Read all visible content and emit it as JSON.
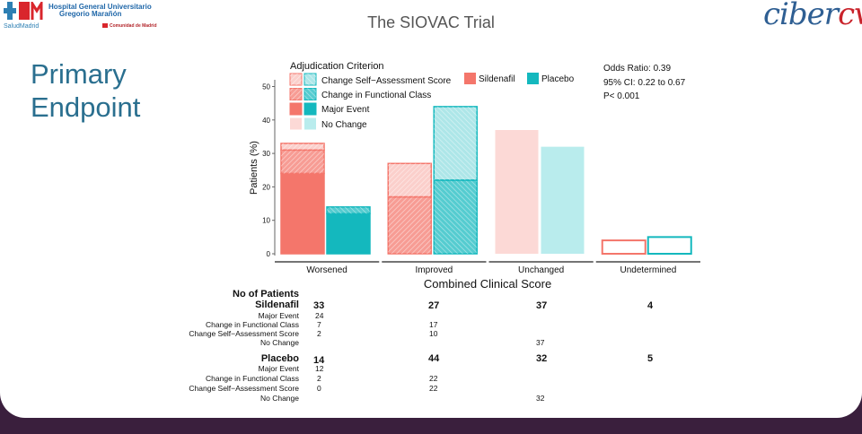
{
  "header": {
    "hospital_line1": "Hospital General Universitario",
    "hospital_line2": "Gregorio Marañón",
    "hospital_line3": "Comunidad de Madrid",
    "salud_label": "SaludMadrid",
    "title": "The SIOVAC Trial",
    "right_logo_part1": "ciber",
    "right_logo_part2": "cv"
  },
  "heading": {
    "line1": "Primary",
    "line2": "Endpoint"
  },
  "colors": {
    "sildenafil": "#f4766b",
    "placebo": "#14b8be",
    "sildenafil_light": "#fcd9d6",
    "placebo_light": "#b9eced"
  },
  "chart_data": {
    "type": "bar",
    "subtype": "stacked-grouped",
    "xlabel": "Combined Clinical Score",
    "ylabel": "Patients (%)",
    "ylim": [
      0,
      52
    ],
    "yticks": [
      0,
      10,
      20,
      30,
      40,
      50
    ],
    "categories": [
      "Worsened",
      "Improved",
      "Unchanged",
      "Undetermined"
    ],
    "legend_title": "Adjudication Criterion",
    "legend_criteria": [
      "Change Self−Assessment Score",
      "Change in Functional Class",
      "Major Event",
      "No Change"
    ],
    "legend_groups": [
      "Sildenafil",
      "Placebo"
    ],
    "stats": {
      "odds_ratio": "Odds Ratio: 0.39",
      "ci": "95% CI: 0.22 to 0.67",
      "p": "P< 0.001"
    },
    "series": [
      {
        "name": "Sildenafil",
        "stacks": [
          {
            "category": "Worsened",
            "Major Event": 24,
            "Change in Functional Class": 7,
            "Change Self−Assessment Score": 2
          },
          {
            "category": "Improved",
            "Change in Functional Class": 17,
            "Change Self−Assessment Score": 10
          },
          {
            "category": "Unchanged",
            "No Change": 37
          },
          {
            "category": "Undetermined",
            "Undetermined": 4
          }
        ]
      },
      {
        "name": "Placebo",
        "stacks": [
          {
            "category": "Worsened",
            "Major Event": 12,
            "Change in Functional Class": 2,
            "Change Self−Assessment Score": 0
          },
          {
            "category": "Improved",
            "Change in Functional Class": 22,
            "Change Self−Assessment Score": 22
          },
          {
            "category": "Unchanged",
            "No Change": 32
          },
          {
            "category": "Undetermined",
            "Undetermined": 5
          }
        ]
      }
    ]
  },
  "table": {
    "header": "No of Patients",
    "groups": [
      {
        "name": "Sildenafil",
        "totals": [
          "33",
          "27",
          "37",
          "4"
        ],
        "rows": [
          {
            "label": "Major Event",
            "values": [
              "24",
              "",
              "",
              ""
            ]
          },
          {
            "label": "Change in Functional Class",
            "values": [
              "7",
              "17",
              "",
              ""
            ]
          },
          {
            "label": "Change Self−Assessment Score",
            "values": [
              "2",
              "10",
              "",
              ""
            ]
          },
          {
            "label": "No Change",
            "values": [
              "",
              "",
              "37",
              ""
            ]
          }
        ]
      },
      {
        "name": "Placebo",
        "totals": [
          "14",
          "44",
          "32",
          "5"
        ],
        "rows": [
          {
            "label": "Major Event",
            "values": [
              "12",
              "",
              "",
              ""
            ]
          },
          {
            "label": "Change in Functional Class",
            "values": [
              "2",
              "22",
              "",
              ""
            ]
          },
          {
            "label": "Change Self−Assessment Score",
            "values": [
              "0",
              "22",
              "",
              ""
            ]
          },
          {
            "label": "No Change",
            "values": [
              "",
              "",
              "32",
              ""
            ]
          }
        ]
      }
    ]
  }
}
